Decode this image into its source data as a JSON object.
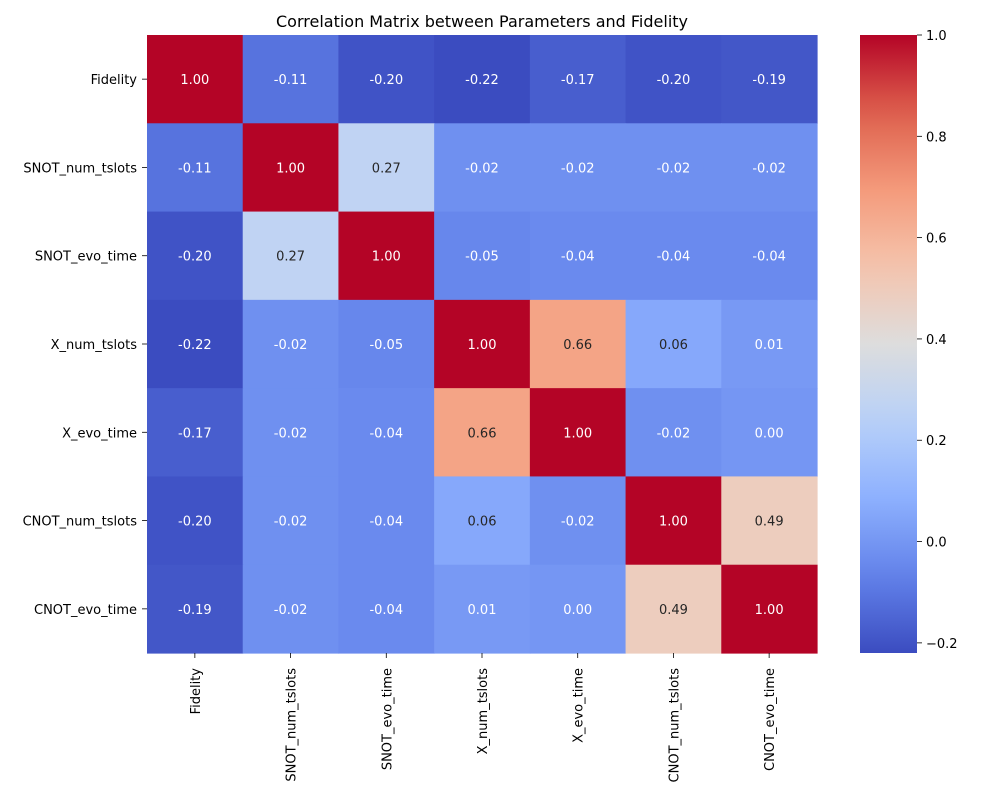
{
  "chart_data": {
    "type": "heatmap",
    "title": "Correlation Matrix between Parameters and Fidelity",
    "xlabel": "",
    "ylabel": "",
    "rows": [
      "Fidelity",
      "SNOT_num_tslots",
      "SNOT_evo_time",
      "X_num_tslots",
      "X_evo_time",
      "CNOT_num_tslots",
      "CNOT_evo_time"
    ],
    "columns": [
      "Fidelity",
      "SNOT_num_tslots",
      "SNOT_evo_time",
      "X_num_tslots",
      "X_evo_time",
      "CNOT_num_tslots",
      "CNOT_evo_time"
    ],
    "values": [
      [
        1.0,
        -0.11,
        -0.2,
        -0.22,
        -0.17,
        -0.2,
        -0.19
      ],
      [
        -0.11,
        1.0,
        0.27,
        -0.02,
        -0.02,
        -0.02,
        -0.02
      ],
      [
        -0.2,
        0.27,
        1.0,
        -0.05,
        -0.04,
        -0.04,
        -0.04
      ],
      [
        -0.22,
        -0.02,
        -0.05,
        1.0,
        0.66,
        0.06,
        0.01
      ],
      [
        -0.17,
        -0.02,
        -0.04,
        0.66,
        1.0,
        -0.02,
        0.0
      ],
      [
        -0.2,
        -0.02,
        -0.04,
        0.06,
        -0.02,
        1.0,
        0.49
      ],
      [
        -0.19,
        -0.02,
        -0.04,
        0.01,
        0.0,
        0.49,
        1.0
      ]
    ],
    "annotation_format": "0.00",
    "colormap": "coolwarm",
    "color_range": [
      -0.22,
      1.0
    ],
    "colorbar_ticks": [
      -0.2,
      0.0,
      0.2,
      0.4,
      0.6,
      0.8,
      1.0
    ],
    "colorbar_tick_labels": [
      "−0.2",
      "0.0",
      "0.2",
      "0.4",
      "0.6",
      "0.8",
      "1.0"
    ],
    "grid": false,
    "colorbar_placement": "right"
  }
}
